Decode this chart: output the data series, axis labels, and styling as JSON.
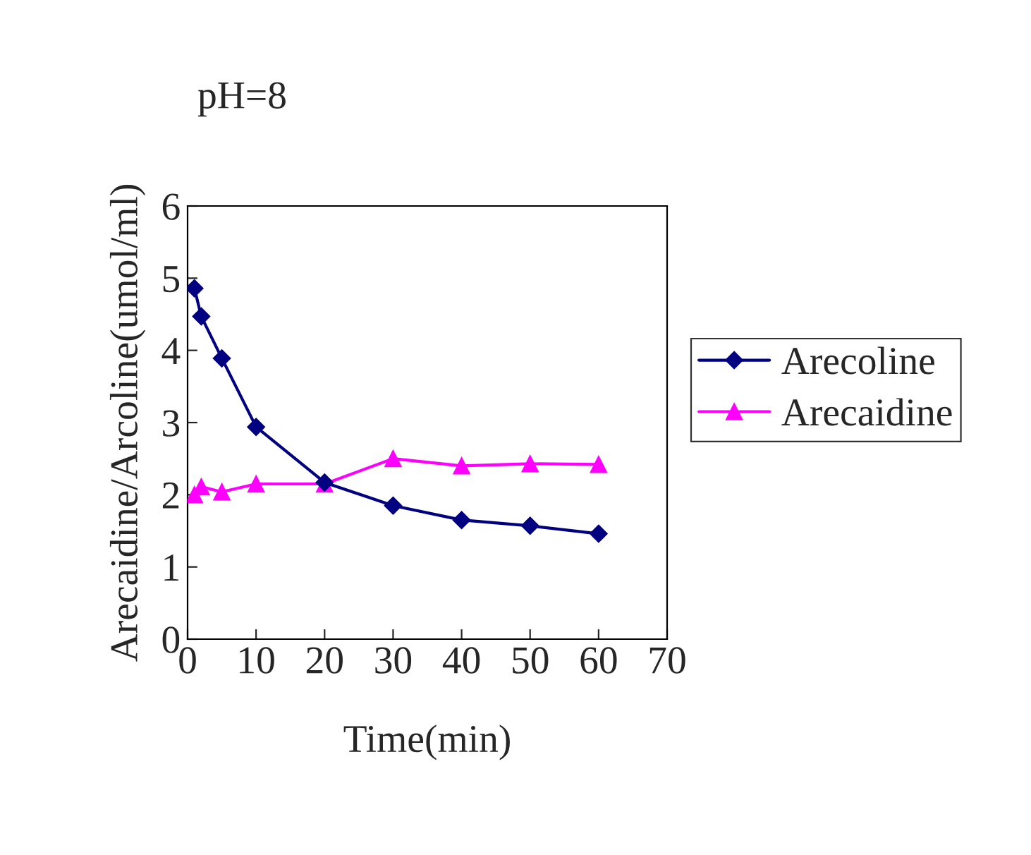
{
  "chart_data": {
    "type": "line",
    "title": "pH=8",
    "xlabel": "Time(min)",
    "ylabel": "Arecaidine/Arcoline(umol/ml)",
    "x": [
      1,
      2,
      5,
      10,
      20,
      30,
      40,
      50,
      60
    ],
    "series": [
      {
        "name": "Arecoline",
        "color": "#000080",
        "marker": "diamond",
        "values": [
          4.86,
          4.47,
          3.89,
          2.94,
          2.17,
          1.85,
          1.65,
          1.57,
          1.46
        ]
      },
      {
        "name": "Arecaidine",
        "color": "#ff00ff",
        "marker": "triangle",
        "values": [
          2.0,
          2.11,
          2.04,
          2.15,
          2.15,
          2.5,
          2.4,
          2.43,
          2.42
        ]
      }
    ],
    "xlim": [
      0,
      70
    ],
    "xticks": [
      0,
      10,
      20,
      30,
      40,
      50,
      60,
      70
    ],
    "ylim": [
      0,
      6
    ],
    "yticks": [
      0,
      1,
      2,
      3,
      4,
      5,
      6
    ],
    "grid": false,
    "legend": "right",
    "line_style": "solid"
  }
}
